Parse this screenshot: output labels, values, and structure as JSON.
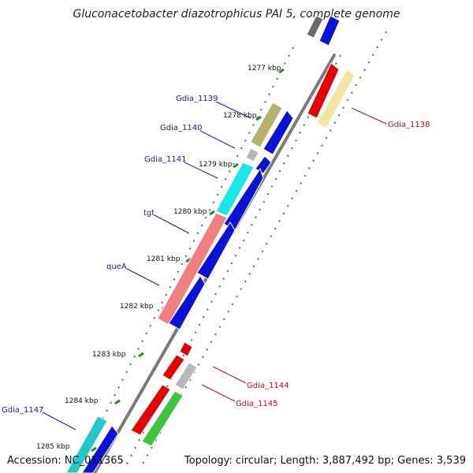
{
  "title": "Gluconacetobacter diazotrophicus PAI 5, complete genome",
  "footer": {
    "accession": "Accession: NC_011365",
    "summary": "Topology: circular; Length: 3,887,492 bp; Genes: 3,539"
  },
  "colors": {
    "backbone": "#7a7a7a",
    "tick": "#2a8a2a",
    "left_label": "#1a1aa0",
    "right_label": "#c01010",
    "blue_gene": "#0b12d8",
    "red_gene": "#e60000",
    "green_gene": "#3fc43f",
    "grey_gene": "#b8b8b8",
    "dark_grey_gene": "#6a6a6a",
    "olive_gene": "#b5b06a",
    "pale_yellow_gene": "#f3e6a3",
    "cyan_gene": "#19e8e8",
    "teal_gene": "#23c8c8",
    "salmon_gene": "#ee8080"
  },
  "ruler": {
    "unit": "kbp",
    "labels": [
      "1277 kbp",
      "1278 kbp",
      "1279 kbp",
      "1280 kbp",
      "1281 kbp",
      "1282 kbp",
      "1283 kbp",
      "1284 kbp",
      "1285 kbp"
    ]
  },
  "gene_labels_left": [
    "Gdia_1139",
    "Gdia_1140",
    "Gdia_1141",
    "tgt",
    "queA",
    "Gdia_1147"
  ],
  "gene_labels_right": [
    "Gdia_1138",
    "Gdia_1144",
    "Gdia_1145"
  ]
}
